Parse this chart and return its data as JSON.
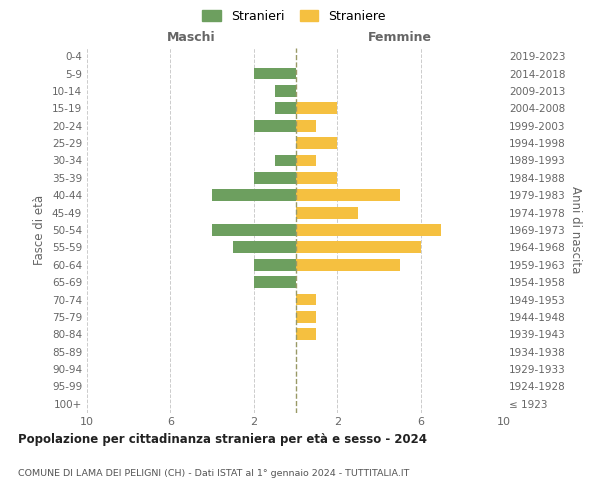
{
  "age_groups": [
    "100+",
    "95-99",
    "90-94",
    "85-89",
    "80-84",
    "75-79",
    "70-74",
    "65-69",
    "60-64",
    "55-59",
    "50-54",
    "45-49",
    "40-44",
    "35-39",
    "30-34",
    "25-29",
    "20-24",
    "15-19",
    "10-14",
    "5-9",
    "0-4"
  ],
  "birth_years": [
    "≤ 1923",
    "1924-1928",
    "1929-1933",
    "1934-1938",
    "1939-1943",
    "1944-1948",
    "1949-1953",
    "1954-1958",
    "1959-1963",
    "1964-1968",
    "1969-1973",
    "1974-1978",
    "1979-1983",
    "1984-1988",
    "1989-1993",
    "1994-1998",
    "1999-2003",
    "2004-2008",
    "2009-2013",
    "2014-2018",
    "2019-2023"
  ],
  "maschi": [
    0,
    0,
    0,
    0,
    0,
    0,
    0,
    2,
    2,
    3,
    4,
    0,
    4,
    2,
    1,
    0,
    2,
    1,
    1,
    2,
    0
  ],
  "femmine": [
    0,
    0,
    0,
    0,
    1,
    1,
    1,
    0,
    5,
    6,
    7,
    3,
    5,
    2,
    1,
    2,
    1,
    2,
    0,
    0,
    0
  ],
  "color_maschi": "#6d9f5f",
  "color_femmine": "#f5c040",
  "title": "Popolazione per cittadinanza straniera per età e sesso - 2024",
  "subtitle": "COMUNE DI LAMA DEI PELIGNI (CH) - Dati ISTAT al 1° gennaio 2024 - TUTTITALIA.IT",
  "xlabel_left": "Maschi",
  "xlabel_right": "Femmine",
  "ylabel_left": "Fasce di età",
  "ylabel_right": "Anni di nascita",
  "legend_stranieri": "Stranieri",
  "legend_straniere": "Straniere",
  "xlim": 10,
  "background_color": "#ffffff",
  "grid_color": "#cccccc",
  "tick_color": "#999999",
  "label_color": "#666666",
  "dashed_line_color": "#999966"
}
